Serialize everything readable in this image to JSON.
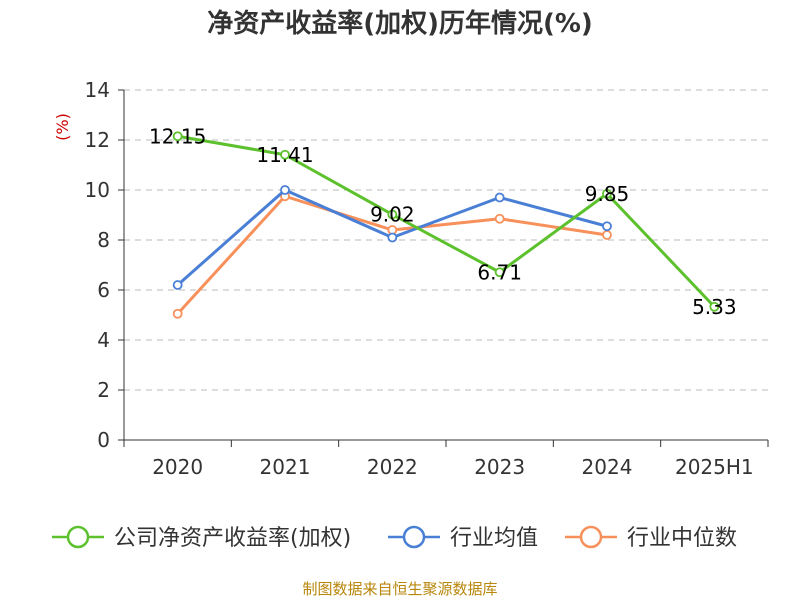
{
  "chart_data": {
    "type": "line",
    "title": "净资产收益率(加权)历年情况(%)",
    "ylabel": "(%)",
    "categories": [
      "2020",
      "2021",
      "2022",
      "2023",
      "2024",
      "2025H1"
    ],
    "ylim": [
      0,
      14
    ],
    "yticks": [
      0,
      2,
      4,
      6,
      8,
      10,
      12,
      14
    ],
    "grid": true,
    "legend_position": "bottom",
    "series": [
      {
        "name": "公司净资产收益率(加权)",
        "color": "#5cc12d",
        "values": [
          12.15,
          11.41,
          9.02,
          6.71,
          9.85,
          5.33
        ],
        "labels": [
          "12.15",
          "11.41",
          "9.02",
          "6.71",
          "9.85",
          "5.33"
        ]
      },
      {
        "name": "行业均值",
        "color": "#4a7fd6",
        "values": [
          6.2,
          10.0,
          8.1,
          9.7,
          8.55,
          null
        ]
      },
      {
        "name": "行业中位数",
        "color": "#f7905a",
        "values": [
          5.05,
          9.75,
          8.4,
          8.85,
          8.2,
          null
        ]
      }
    ]
  },
  "source": "制图数据来自恒生聚源数据库"
}
